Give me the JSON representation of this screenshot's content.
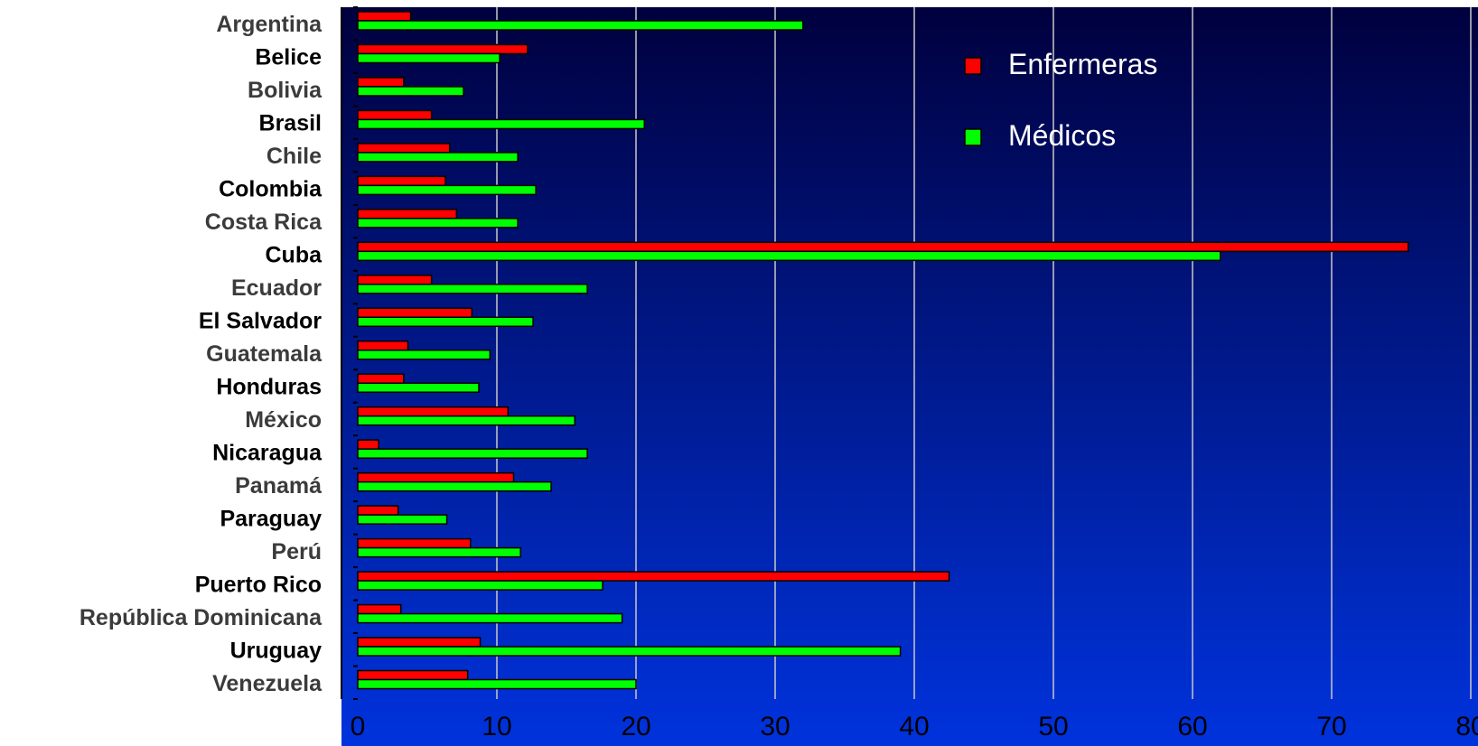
{
  "chart_data": {
    "type": "bar",
    "orientation": "horizontal",
    "categories": [
      "Argentina",
      "Belice",
      "Bolivia",
      "Brasil",
      "Chile",
      "Colombia",
      "Costa Rica",
      "Cuba",
      "Ecuador",
      "El Salvador",
      "Guatemala",
      "Honduras",
      "México",
      "Nicaragua",
      "Panamá",
      "Paraguay",
      "Perú",
      "Puerto Rico",
      "República Dominicana",
      "Uruguay",
      "Venezuela"
    ],
    "series": [
      {
        "name": "Enfermeras",
        "color": "#ff0000",
        "values": [
          3.8,
          12.2,
          3.3,
          5.3,
          6.6,
          6.3,
          7.1,
          75.5,
          5.3,
          8.2,
          3.6,
          3.3,
          10.8,
          1.5,
          11.2,
          2.9,
          8.1,
          42.5,
          3.1,
          8.8,
          7.9
        ]
      },
      {
        "name": "Médicos",
        "color": "#00ff00",
        "values": [
          32.0,
          10.2,
          7.6,
          20.6,
          11.5,
          12.8,
          11.5,
          62.0,
          16.5,
          12.6,
          9.5,
          8.7,
          15.6,
          16.5,
          13.9,
          6.4,
          11.7,
          17.6,
          19.0,
          39.0,
          20.0
        ]
      }
    ],
    "xlim": [
      0,
      80
    ],
    "xticks": [
      "0",
      "10",
      "20",
      "30",
      "40",
      "50",
      "60",
      "70",
      "80"
    ],
    "category_label_colors": [
      "#3b3b3b",
      "#000000",
      "#3b3b3b",
      "#000000",
      "#3b3b3b",
      "#000000",
      "#3b3b3b",
      "#000000",
      "#3b3b3b",
      "#000000",
      "#3b3b3b",
      "#000000",
      "#3b3b3b",
      "#000000",
      "#3b3b3b",
      "#000000",
      "#3b3b3b",
      "#000000",
      "#3b3b3b",
      "#000000",
      "#3b3b3b"
    ],
    "grid": true,
    "legend_position": "top-right",
    "background_gradient": [
      "#00003e",
      "#0033dd"
    ],
    "gridline_color": "#c8c8c8"
  }
}
